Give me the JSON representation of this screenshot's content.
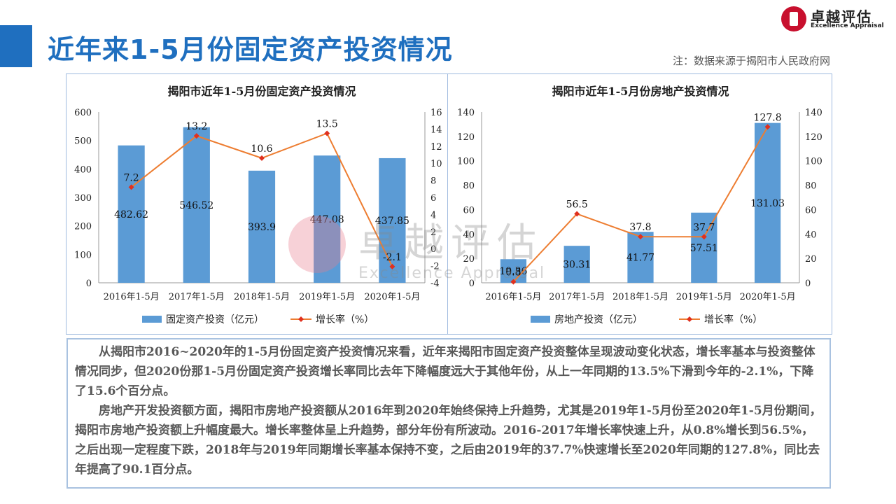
{
  "header": {
    "title": "近年来1-5月份固定资产投资情况",
    "note": "注：数据来源于揭阳市人民政府网",
    "logo_cn": "卓越评估",
    "logo_en": "Excellence Appraisal"
  },
  "watermark": {
    "cn": "卓越评估",
    "en": "Excellence Appraisal"
  },
  "chart_data": [
    {
      "type": "bar",
      "title": "揭阳市近年1-5月份固定资产投资情况",
      "categories": [
        "2016年1-5月",
        "2017年1-5月",
        "2018年1-5月",
        "2019年1-5月",
        "2020年1-5月"
      ],
      "series": [
        {
          "name": "固定资产投资（亿元）",
          "type": "bar",
          "axis": "left",
          "values": [
            482.62,
            546.52,
            393.9,
            447.08,
            437.85
          ],
          "labels": [
            "482.62",
            "546.52",
            "393.9",
            "447.08",
            "437.85"
          ]
        },
        {
          "name": "增长率（%）",
          "type": "line",
          "axis": "right",
          "values": [
            7.2,
            13.2,
            10.6,
            13.5,
            -2.1
          ],
          "labels": [
            "7.2",
            "13.2",
            "10.6",
            "13.5",
            "-2.1"
          ]
        }
      ],
      "ylim_left": [
        0,
        600
      ],
      "yticks_left": [
        0,
        100,
        200,
        300,
        400,
        500,
        600
      ],
      "ylim_right": [
        -4,
        16
      ],
      "yticks_right": [
        -4,
        -2,
        0,
        2,
        4,
        6,
        8,
        10,
        12,
        14,
        16
      ],
      "legend": "bottom",
      "grid": false,
      "colors": {
        "bar": "#5b9bd5",
        "line": "#ed7d31",
        "marker": "#e0301e"
      }
    },
    {
      "type": "bar",
      "title": "揭阳市近年1-5月份房地产投资情况",
      "categories": [
        "2016年1-5月",
        "2017年1-5月",
        "2018年1-5月",
        "2019年1-5月",
        "2020年1-5月"
      ],
      "series": [
        {
          "name": "房地产投资（亿元）",
          "type": "bar",
          "axis": "left",
          "values": [
            19.36,
            30.31,
            41.77,
            57.51,
            131.03
          ],
          "labels": [
            "19.36",
            "30.31",
            "41.77",
            "57.51",
            "131.03"
          ]
        },
        {
          "name": "增长率（%）",
          "type": "line",
          "axis": "right",
          "values": [
            0.8,
            56.5,
            37.8,
            37.7,
            127.8
          ],
          "labels": [
            "0.8",
            "56.5",
            "37.8",
            "37.7",
            "127.8"
          ]
        }
      ],
      "ylim_left": [
        0,
        140
      ],
      "yticks_left": [
        0,
        20,
        40,
        60,
        80,
        100,
        120,
        140
      ],
      "ylim_right": [
        0,
        140
      ],
      "yticks_right": [
        0,
        20,
        40,
        60,
        80,
        100,
        120,
        140
      ],
      "legend": "bottom",
      "grid": false,
      "colors": {
        "bar": "#5b9bd5",
        "line": "#ed7d31",
        "marker": "#e0301e"
      }
    }
  ],
  "analysis": {
    "paragraphs": [
      "从揭阳市2016~2020年的1-5月份固定资产投资情况来看，近年来揭阳市固定资产投资整体呈现波动变化状态，增长率基本与投资整体情况同步，但2020份那1-5月份固定资产投资增长率同比去年下降幅度远大于其他年份，从上一年同期的13.5%下滑到今年的-2.1%，下降了15.6个百分点。",
      "房地产开发投资额方面，揭阳市房地产投资额从2016年到2020年始终保持上升趋势，尤其是2019年1-5月份至2020年1-5月份期间，揭阳市房地产投资额上升幅度最大。增长率整体呈上升趋势，部分年份有所波动。2016-2017年增长率快速上升，从0.8%增长到56.5%，之后出现一定程度下跌，2018年与2019年同期增长率基本保持不变，之后由2019年的37.7%快速增长至2020年同期的127.8%，同比去年提高了90.1百分点。"
    ]
  }
}
